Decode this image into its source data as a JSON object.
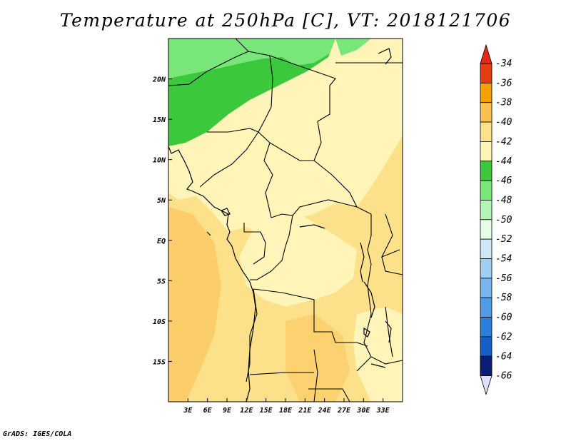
{
  "title": "Temperature at 250hPa [C], VT: 2018121706",
  "footer": "GrADS: IGES/COLA",
  "map": {
    "lon_range": [
      0,
      36
    ],
    "lat_range": [
      -20,
      25
    ],
    "lat_ticks": [
      {
        "value": 20,
        "label": "20N"
      },
      {
        "value": 15,
        "label": "15N"
      },
      {
        "value": 10,
        "label": "10N"
      },
      {
        "value": 5,
        "label": "5N"
      },
      {
        "value": 0,
        "label": "EQ"
      },
      {
        "value": -5,
        "label": "5S"
      },
      {
        "value": -10,
        "label": "10S"
      },
      {
        "value": -15,
        "label": "15S"
      }
    ],
    "lon_ticks": [
      {
        "value": 3,
        "label": "3E"
      },
      {
        "value": 6,
        "label": "6E"
      },
      {
        "value": 9,
        "label": "9E"
      },
      {
        "value": 12,
        "label": "12E"
      },
      {
        "value": 15,
        "label": "15E"
      },
      {
        "value": 18,
        "label": "18E"
      },
      {
        "value": 21,
        "label": "21E"
      },
      {
        "value": 24,
        "label": "24E"
      },
      {
        "value": 27,
        "label": "27E"
      },
      {
        "value": 30,
        "label": "30E"
      },
      {
        "value": 33,
        "label": "33E"
      }
    ]
  },
  "colorbar": {
    "levels": [
      {
        "label": "-34",
        "color": "#e63c0f"
      },
      {
        "label": "-36",
        "color": "#f26b00"
      },
      {
        "label": "-38",
        "color": "#f5a000"
      },
      {
        "label": "-40",
        "color": "#fac050"
      },
      {
        "label": "-42",
        "color": "#fde08a"
      },
      {
        "label": "-44",
        "color": "#fff5b8"
      },
      {
        "label": "-46",
        "color": "#3cc83c"
      },
      {
        "label": "-48",
        "color": "#78e678"
      },
      {
        "label": "-50",
        "color": "#b4f5b4"
      },
      {
        "label": "-52",
        "color": "#e6ffe6"
      },
      {
        "label": "-54",
        "color": "#cfe8f8"
      },
      {
        "label": "-56",
        "color": "#a0cdf2"
      },
      {
        "label": "-58",
        "color": "#78b4ee"
      },
      {
        "label": "-60",
        "color": "#509be6"
      },
      {
        "label": "-62",
        "color": "#2d7fdc"
      },
      {
        "label": "-64",
        "color": "#1460c8"
      },
      {
        "label": "-66",
        "color": "#0a3ca0"
      }
    ],
    "top_arrow_color": "#e62814",
    "bottom_box_color": "#0a1e78",
    "bottom_arrow_color": "#dde0ff"
  }
}
